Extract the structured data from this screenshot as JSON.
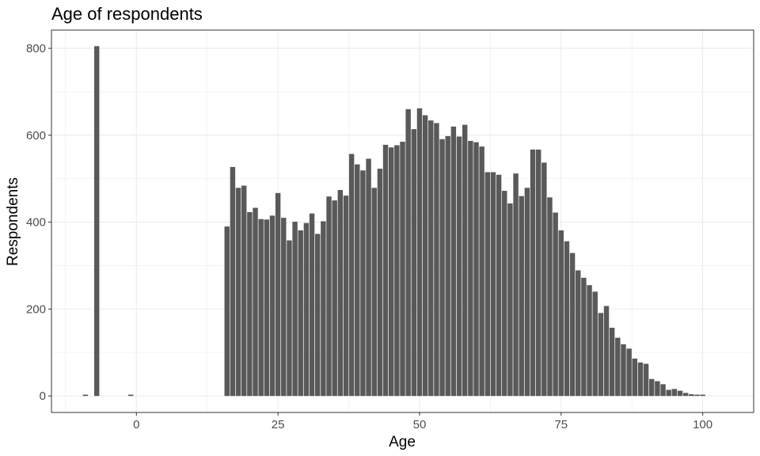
{
  "chart_data": {
    "type": "bar",
    "title": "Age of respondents",
    "xlabel": "Age",
    "ylabel": "Respondents",
    "xlim": [
      -15,
      109
    ],
    "ylim": [
      -38,
      842
    ],
    "x_ticks": [
      0,
      25,
      50,
      75,
      100
    ],
    "y_ticks": [
      0,
      200,
      400,
      600,
      800
    ],
    "grid": true,
    "colors": {
      "bar": "#595959",
      "grid": "#ebebeb",
      "panel_border": "#333333",
      "tick": "#4d4d4d"
    },
    "x": [
      -9,
      -7,
      -1,
      16,
      17,
      18,
      19,
      20,
      21,
      22,
      23,
      24,
      25,
      26,
      27,
      28,
      29,
      30,
      31,
      32,
      33,
      34,
      35,
      36,
      37,
      38,
      39,
      40,
      41,
      42,
      43,
      44,
      45,
      46,
      47,
      48,
      49,
      50,
      51,
      52,
      53,
      54,
      55,
      56,
      57,
      58,
      59,
      60,
      61,
      62,
      63,
      64,
      65,
      66,
      67,
      68,
      69,
      70,
      71,
      72,
      73,
      74,
      75,
      76,
      77,
      78,
      79,
      80,
      81,
      82,
      83,
      84,
      85,
      86,
      87,
      88,
      89,
      90,
      91,
      92,
      93,
      94,
      95,
      96,
      97,
      98,
      99,
      100
    ],
    "values": [
      3,
      805,
      3,
      390,
      527,
      479,
      484,
      423,
      433,
      407,
      406,
      415,
      467,
      410,
      358,
      401,
      381,
      398,
      420,
      373,
      402,
      459,
      450,
      474,
      461,
      557,
      533,
      519,
      546,
      479,
      523,
      578,
      572,
      577,
      585,
      660,
      614,
      662,
      646,
      634,
      628,
      591,
      598,
      620,
      597,
      624,
      587,
      584,
      574,
      515,
      515,
      509,
      472,
      443,
      512,
      460,
      479,
      567,
      567,
      537,
      457,
      422,
      381,
      356,
      329,
      289,
      272,
      255,
      240,
      191,
      207,
      157,
      134,
      119,
      109,
      86,
      77,
      74,
      39,
      34,
      27,
      14,
      16,
      12,
      7,
      4,
      3,
      3
    ]
  }
}
